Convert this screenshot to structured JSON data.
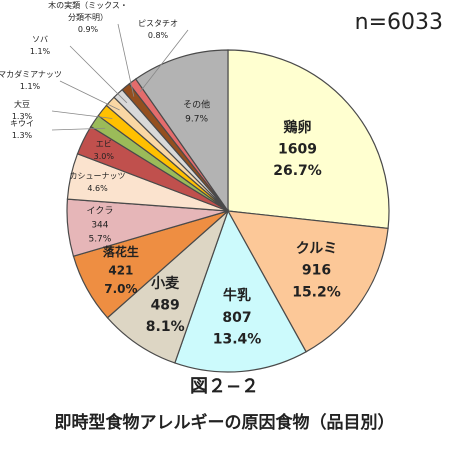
{
  "n_label": "n=6033",
  "figure_label": "図２−２",
  "caption": "即時型食物アレルギーの原因食物（品目別）",
  "chart_data": {
    "type": "pie",
    "start": "12 o'clock, clockwise",
    "slices": [
      {
        "name": "鶏卵",
        "count": "1609",
        "percent": 26.7,
        "pct_label": "26.7%",
        "color": "#FFFFD0"
      },
      {
        "name": "クルミ",
        "count": "916",
        "percent": 15.2,
        "pct_label": "15.2%",
        "color": "#FCC898"
      },
      {
        "name": "牛乳",
        "count": "807",
        "percent": 13.4,
        "pct_label": "13.4%",
        "color": "#CCFAFC"
      },
      {
        "name": "小麦",
        "count": "489",
        "percent": 8.1,
        "pct_label": "8.1%",
        "color": "#DDD6C4"
      },
      {
        "name": "落花生",
        "count": "421",
        "percent": 7.0,
        "pct_label": "7.0%",
        "color": "#EE8E42"
      },
      {
        "name": "イクラ",
        "count": "344",
        "percent": 5.7,
        "pct_label": "5.7%",
        "color": "#E6B6B8"
      },
      {
        "name": "カシューナッツ",
        "count": "",
        "percent": 4.6,
        "pct_label": "4.6%",
        "color": "#FBE3CE"
      },
      {
        "name": "エビ",
        "count": "",
        "percent": 3.0,
        "pct_label": "3.0%",
        "color": "#C0504D"
      },
      {
        "name": "キウイ",
        "count": "",
        "percent": 1.3,
        "pct_label": "1.3%",
        "color": "#9BBB59"
      },
      {
        "name": "大豆",
        "count": "",
        "percent": 1.3,
        "pct_label": "1.3%",
        "color": "#FFC000"
      },
      {
        "name": "マカダミアナッツ",
        "count": "",
        "percent": 1.1,
        "pct_label": "1.1%",
        "color": "#F9D7A4"
      },
      {
        "name": "ソバ",
        "count": "",
        "percent": 1.1,
        "pct_label": "1.1%",
        "color": "#D9D9D9"
      },
      {
        "name": "木の実類（ミックス・分類不明）",
        "count": "",
        "percent": 0.9,
        "pct_label": "0.9%",
        "color": "#944F1F"
      },
      {
        "name": "ピスタチオ",
        "count": "",
        "percent": 0.8,
        "pct_label": "0.8%",
        "color": "#E46C6C"
      },
      {
        "name": "その他",
        "count": "",
        "percent": 9.7,
        "pct_label": "9.7%",
        "color": "#B3B3B3"
      }
    ]
  }
}
